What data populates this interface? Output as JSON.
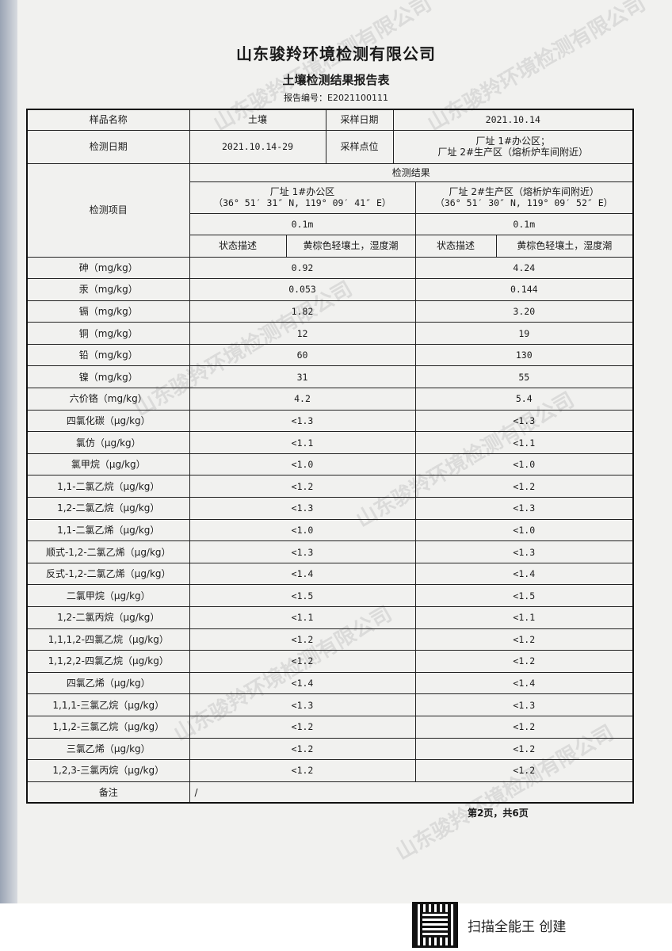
{
  "company": "山东骏羚环境检测有限公司",
  "title": "土壤检测结果报告表",
  "report_no": "报告编号：E2021100111",
  "watermark": "山东骏羚环境检测有限公司",
  "info": {
    "sample_name_label": "样品名称",
    "sample_name": "土壤",
    "sampling_date_label": "采样日期",
    "sampling_date": "2021.10.14",
    "test_date_label": "检测日期",
    "test_date": "2021.10.14-29",
    "sampling_site_label": "采样点位",
    "sampling_site_1": "厂址 1#办公区；",
    "sampling_site_2": "厂址 2#生产区（熔析炉车间附近）"
  },
  "header": {
    "item_label": "检测项目",
    "results_label": "检测结果",
    "site_a_name": "厂址 1#办公区",
    "site_a_coord": "（36° 51′ 31″ N, 119° 09′ 41″ E）",
    "site_b_name": "厂址 2#生产区（熔析炉车间附近）",
    "site_b_coord": "（36° 51′ 30″ N, 119° 09′ 52″ E）",
    "site_a_depth": "0.1m",
    "site_b_depth": "0.1m",
    "state_label": "状态描述",
    "site_a_state": "黄棕色轻壤土，湿度潮",
    "site_b_state": "黄棕色轻壤土，湿度潮"
  },
  "rows": [
    {
      "item": "砷（mg/kg）",
      "a": "0.92",
      "b": "4.24"
    },
    {
      "item": "汞（mg/kg）",
      "a": "0.053",
      "b": "0.144"
    },
    {
      "item": "镉（mg/kg）",
      "a": "1.82",
      "b": "3.20"
    },
    {
      "item": "铜（mg/kg）",
      "a": "12",
      "b": "19"
    },
    {
      "item": "铅（mg/kg）",
      "a": "60",
      "b": "130"
    },
    {
      "item": "镍（mg/kg）",
      "a": "31",
      "b": "55"
    },
    {
      "item": "六价铬（mg/kg）",
      "a": "4.2",
      "b": "5.4"
    },
    {
      "item": "四氯化碳（μg/kg）",
      "a": "<1.3",
      "b": "<1.3"
    },
    {
      "item": "氯仿（μg/kg）",
      "a": "<1.1",
      "b": "<1.1"
    },
    {
      "item": "氯甲烷（μg/kg）",
      "a": "<1.0",
      "b": "<1.0"
    },
    {
      "item": "1,1-二氯乙烷（μg/kg）",
      "a": "<1.2",
      "b": "<1.2"
    },
    {
      "item": "1,2-二氯乙烷（μg/kg）",
      "a": "<1.3",
      "b": "<1.3"
    },
    {
      "item": "1,1-二氯乙烯（μg/kg）",
      "a": "<1.0",
      "b": "<1.0"
    },
    {
      "item": "顺式-1,2-二氯乙烯（μg/kg）",
      "a": "<1.3",
      "b": "<1.3"
    },
    {
      "item": "反式-1,2-二氯乙烯（μg/kg）",
      "a": "<1.4",
      "b": "<1.4"
    },
    {
      "item": "二氯甲烷（μg/kg）",
      "a": "<1.5",
      "b": "<1.5"
    },
    {
      "item": "1,2-二氯丙烷（μg/kg）",
      "a": "<1.1",
      "b": "<1.1"
    },
    {
      "item": "1,1,1,2-四氯乙烷（μg/kg）",
      "a": "<1.2",
      "b": "<1.2"
    },
    {
      "item": "1,1,2,2-四氯乙烷（μg/kg）",
      "a": "<1.2",
      "b": "<1.2"
    },
    {
      "item": "四氯乙烯（μg/kg）",
      "a": "<1.4",
      "b": "<1.4"
    },
    {
      "item": "1,1,1-三氯乙烷（μg/kg）",
      "a": "<1.3",
      "b": "<1.3"
    },
    {
      "item": "1,1,2-三氯乙烷（μg/kg）",
      "a": "<1.2",
      "b": "<1.2"
    },
    {
      "item": "三氯乙烯（μg/kg）",
      "a": "<1.2",
      "b": "<1.2"
    },
    {
      "item": "1,2,3-三氯丙烷（μg/kg）",
      "a": "<1.2",
      "b": "<1.2"
    }
  ],
  "remarks_label": "备注",
  "remarks": "/",
  "page_indicator": "第2页，共6页",
  "scanner": "扫描全能王 创建"
}
